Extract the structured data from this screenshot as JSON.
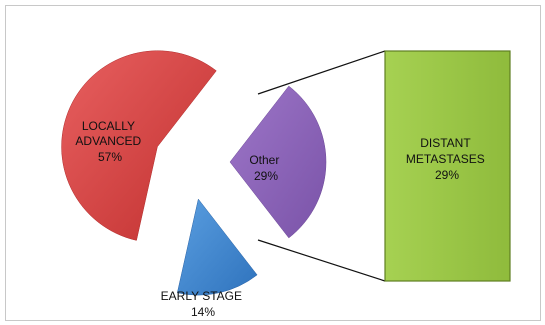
{
  "chart_data": {
    "type": "pie",
    "variant": "bar-of-pie",
    "title": "",
    "slices": [
      {
        "label_lines": [
          "LOCALLY",
          "ADVANCED"
        ],
        "percent": "57%",
        "value": 57,
        "color": "#d94140"
      },
      {
        "label_lines": [
          "EARLY  STAGE"
        ],
        "percent": "14%",
        "value": 14,
        "color": "#3f86d0"
      },
      {
        "label_lines": [
          "Other"
        ],
        "percent": "29%",
        "value": 29,
        "color": "#8d63b9"
      }
    ],
    "secondary_bar": {
      "label_lines": [
        "DISTANT",
        "METASTASES"
      ],
      "percent": "29%",
      "value": 29,
      "color": "#9dc94a"
    },
    "exploded": true,
    "connector_lines": true
  }
}
